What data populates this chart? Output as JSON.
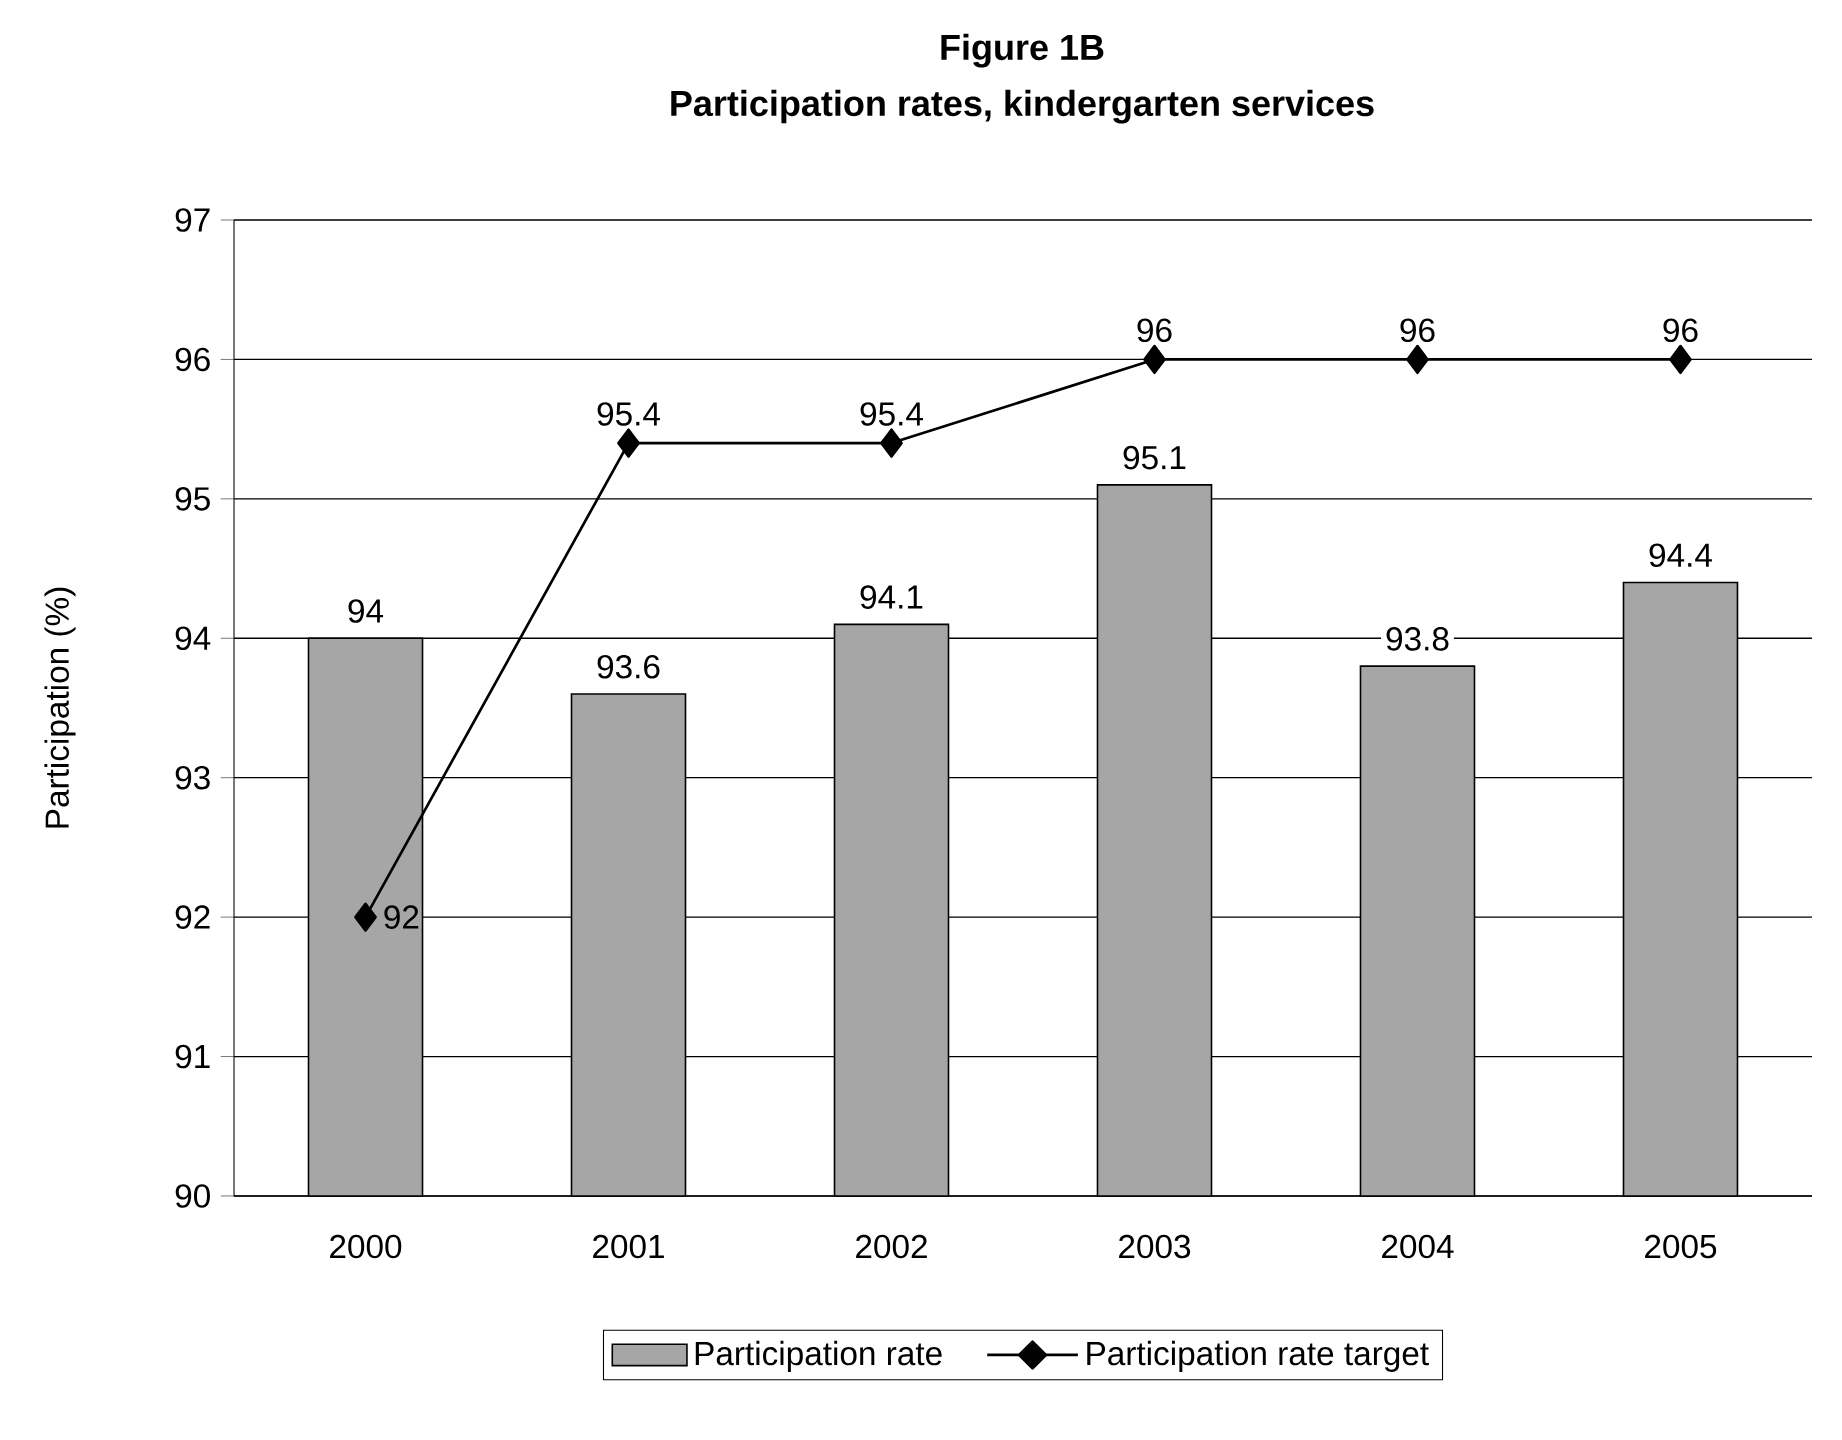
{
  "chart_data": {
    "type": "bar",
    "title": "Figure 1B",
    "subtitle": "Participation rates, kindergarten services",
    "ylabel": "Participation (%)",
    "categories": [
      "2000",
      "2001",
      "2002",
      "2003",
      "2004",
      "2005"
    ],
    "series": [
      {
        "name": "Participation rate",
        "color": "#a6a6a6",
        "values": [
          94,
          93.6,
          94.1,
          95.1,
          93.8,
          94.4
        ]
      },
      {
        "name": "Participation rate target",
        "type": "line",
        "color": "#000000",
        "marker": "diamond",
        "values": [
          92,
          95.4,
          95.4,
          96,
          96,
          96
        ]
      }
    ],
    "ylim": [
      90,
      97
    ],
    "yticks": [
      90,
      91,
      92,
      93,
      94,
      95,
      96,
      97
    ],
    "grid": "y",
    "legend": "bottom",
    "data_labels": true
  }
}
